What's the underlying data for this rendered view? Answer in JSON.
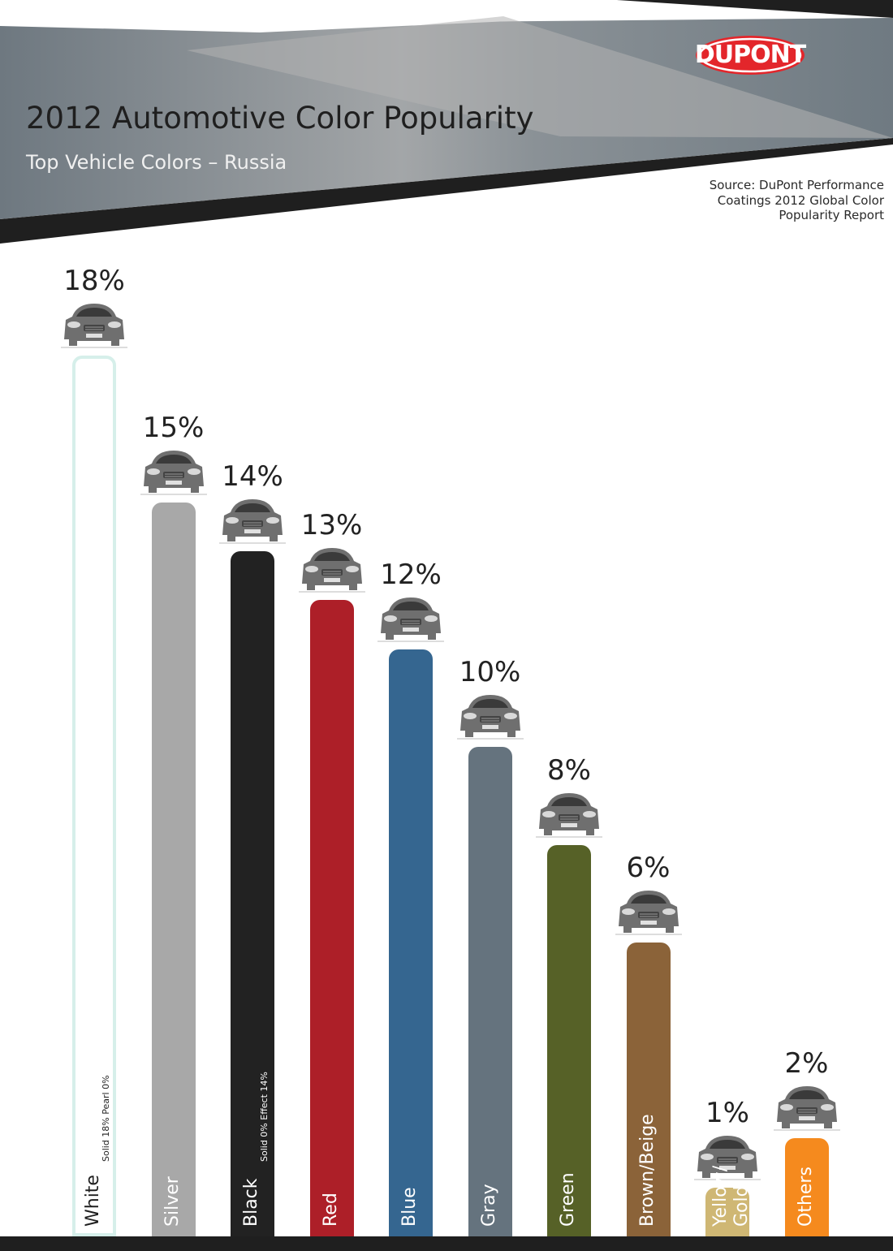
{
  "header": {
    "title": "2012 Automotive Color Popularity",
    "subtitle": "Top Vehicle Colors – Russia",
    "source": "Source: DuPont Performance Coatings 2012 Global Color Popularity Report",
    "logo_text": "DUPONT"
  },
  "colors": {
    "header_gray": "#6e7880",
    "header_light": "#a9a9a9",
    "header_dark": "#1f1f1f",
    "logo_red": "#e3262b"
  },
  "chart_data": {
    "type": "bar",
    "title": "2012 Automotive Color Popularity",
    "subtitle": "Top Vehicle Colors – Russia",
    "xlabel": "",
    "ylabel": "",
    "ylim": [
      0,
      18
    ],
    "grid": false,
    "categories": [
      "White",
      "Silver",
      "Black",
      "Red",
      "Blue",
      "Gray",
      "Green",
      "Brown/Beige",
      "Yellow/ Gold",
      "Others"
    ],
    "values": [
      18,
      15,
      14,
      13,
      12,
      10,
      8,
      6,
      1,
      2
    ],
    "value_labels": [
      "18%",
      "15%",
      "14%",
      "13%",
      "12%",
      "10%",
      "8%",
      "6%",
      "1%",
      "2%"
    ],
    "bar_colors": [
      "#ffffff",
      "#a8a8a8",
      "#222222",
      "#ad1f28",
      "#356690",
      "#65737e",
      "#566127",
      "#8b6339",
      "#cfb774",
      "#f58a1e"
    ],
    "breakdown": {
      "White": "Solid 18%   Pearl 0%",
      "Black": "Solid 0%   Effect 14%"
    },
    "icon": "car-icon"
  }
}
